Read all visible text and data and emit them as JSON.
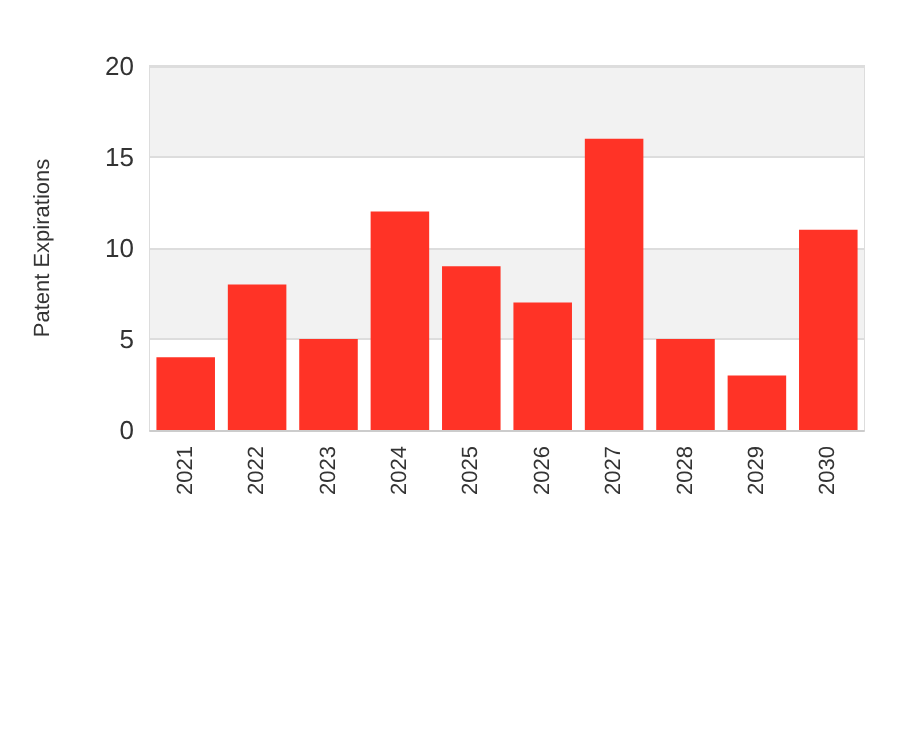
{
  "chart_data": {
    "type": "bar",
    "ylabel": "Patent Expirations",
    "categories": [
      "2021",
      "2022",
      "2023",
      "2024",
      "2025",
      "2026",
      "2027",
      "2028",
      "2029",
      "2030"
    ],
    "values": [
      4,
      8,
      5,
      12,
      9,
      7,
      16,
      5,
      3,
      11
    ],
    "color": "#ff3326",
    "ylim": [
      0,
      20
    ],
    "yticks": [
      0,
      5,
      10,
      15,
      20
    ],
    "grid": "y"
  }
}
